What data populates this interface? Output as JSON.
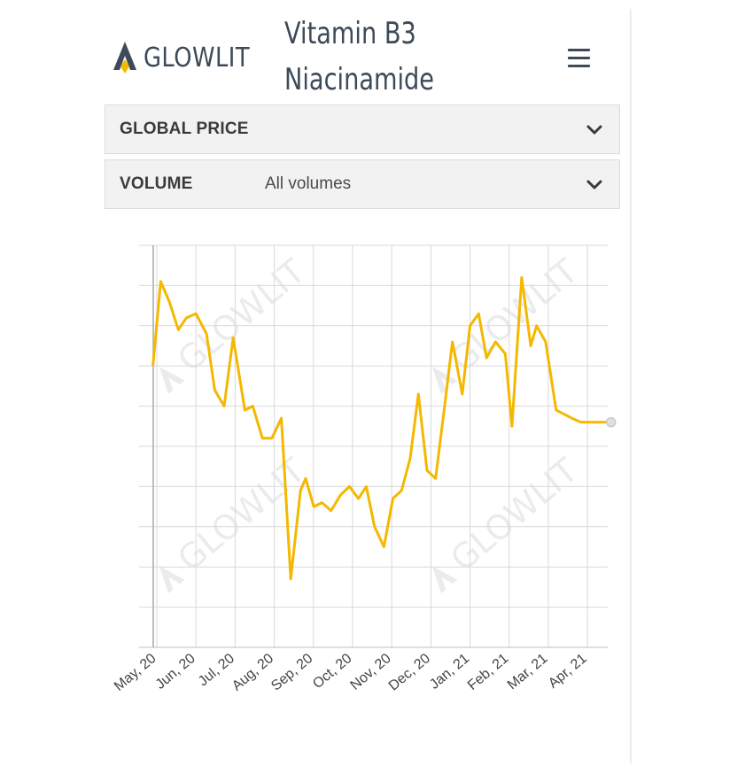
{
  "header": {
    "logo_text": "GLOWLIT",
    "title_line1": "Vitamin B3",
    "title_line2": "Niacinamide",
    "menu_icon": "hamburger-menu-icon"
  },
  "filters": [
    {
      "label": "GLOBAL PRICE",
      "value": "",
      "icon": "chevron-down-icon"
    },
    {
      "label": "VOLUME",
      "value": "All volumes",
      "icon": "chevron-down-icon"
    }
  ],
  "watermark_text": "GLOWLIT",
  "colors": {
    "accent": "#f5b800",
    "text_dark": "#3d4a58",
    "grid": "#d9d9d9",
    "panel_bg": "#f2f2f2"
  },
  "chart_data": {
    "type": "line",
    "title": "",
    "xlabel": "",
    "ylabel": "",
    "categories": [
      "May, 20",
      "Jun, 20",
      "Jul, 20",
      "Aug, 20",
      "Sep, 20",
      "Oct, 20",
      "Nov, 20",
      "Dec, 20",
      "Jan, 21",
      "Feb, 21",
      "Mar, 21",
      "Apr, 21"
    ],
    "x_range": [
      -0.1,
      11.6
    ],
    "y_range": [
      0,
      10
    ],
    "grid": true,
    "legend": "none",
    "series": [
      {
        "color": "#f5b800",
        "x": [
          -0.1,
          0.1,
          0.32,
          0.55,
          0.76,
          1.0,
          1.27,
          1.48,
          1.72,
          1.95,
          2.25,
          2.45,
          2.7,
          2.94,
          3.18,
          3.42,
          3.67,
          3.8,
          4.01,
          4.22,
          4.45,
          4.7,
          4.92,
          5.15,
          5.35,
          5.56,
          5.8,
          6.03,
          6.25,
          6.47,
          6.68,
          6.9,
          7.12,
          7.35,
          7.55,
          7.8,
          8.0,
          8.22,
          8.42,
          8.65,
          8.9,
          9.07,
          9.32,
          9.55,
          9.7,
          9.93,
          10.2,
          10.4,
          10.6,
          10.83,
          11.05,
          11.27,
          11.4,
          11.6
        ],
        "y": [
          7.0,
          9.1,
          8.6,
          7.9,
          8.2,
          8.3,
          7.8,
          6.4,
          6.0,
          7.7,
          5.9,
          6.0,
          5.2,
          5.2,
          5.7,
          1.7,
          3.9,
          4.2,
          3.5,
          3.6,
          3.4,
          3.8,
          4.0,
          3.7,
          4.0,
          3.0,
          2.5,
          3.7,
          3.9,
          4.7,
          6.3,
          4.4,
          4.2,
          6.0,
          7.6,
          6.3,
          8.0,
          8.3,
          7.2,
          7.6,
          7.3,
          5.5,
          9.2,
          7.5,
          8.0,
          7.6,
          5.9,
          5.8,
          5.7,
          5.6,
          5.6,
          5.6,
          5.6,
          5.6
        ]
      }
    ]
  }
}
